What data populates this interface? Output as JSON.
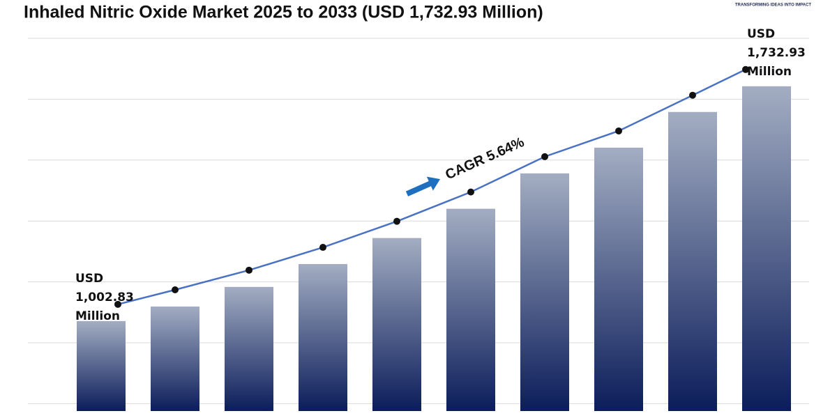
{
  "chart_data": {
    "type": "bar-line",
    "title": "Inhaled Nitric Oxide Market 2025 to 2033 (USD 1,732.93 Million)",
    "logo_tagline": "TRANSFORMING IDEAS INTO IMPACT",
    "categories": [
      null,
      null,
      null,
      null,
      null,
      null,
      null,
      null,
      null,
      null
    ],
    "values": [
      1002.83,
      1048,
      1109,
      1180,
      1261,
      1352,
      1462,
      1542,
      1653,
      1732.93
    ],
    "value_labels": [
      "USD 1,002.83 Million",
      null,
      null,
      null,
      null,
      null,
      null,
      null,
      null,
      "USD 1,732.93 Million"
    ],
    "annotation": "CAGR 5.64%",
    "ylim": [
      723,
      1882
    ],
    "grid": true,
    "bar_color_top": "#a3adc2",
    "bar_color_bottom": "#0b1d5a",
    "line_color": "#4a72c4",
    "marker_color": "#111111",
    "arrow_color": "#1f6fc0"
  }
}
